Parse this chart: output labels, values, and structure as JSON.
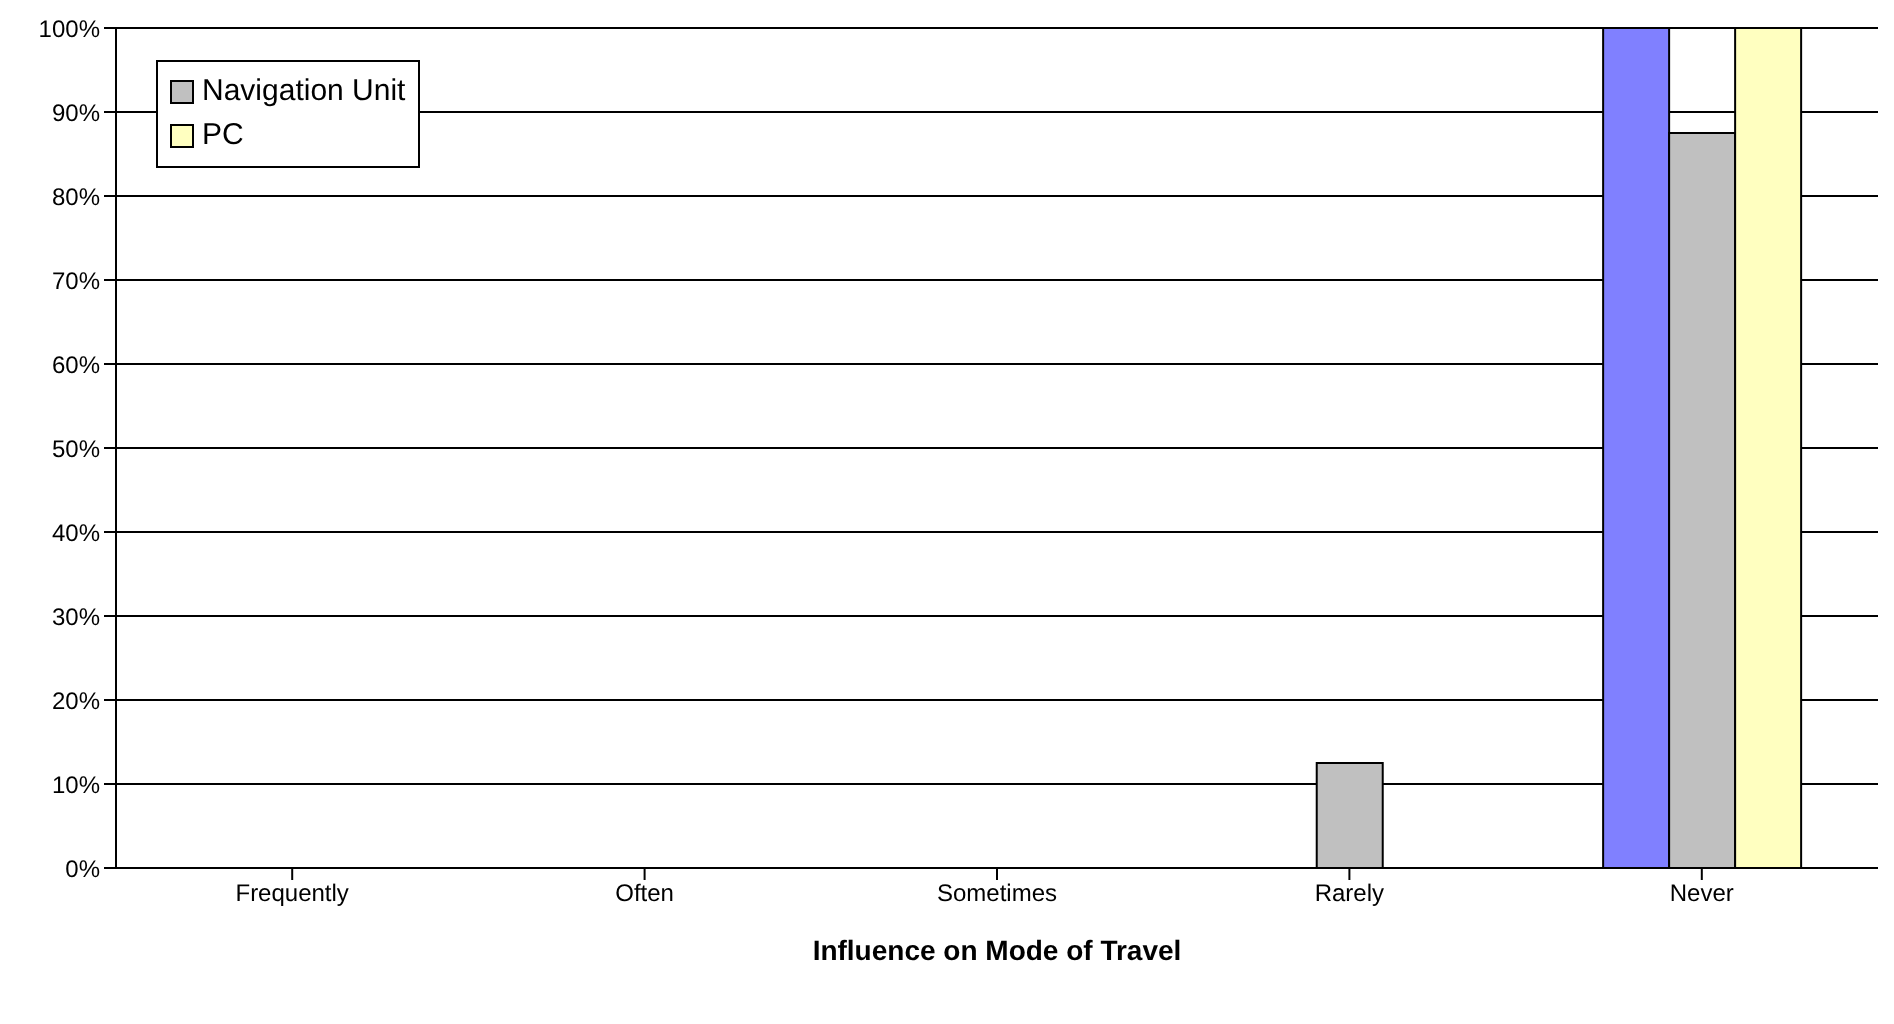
{
  "chart_data": {
    "type": "bar",
    "xlabel": "Influence on Mode of Travel",
    "categories": [
      "Frequently",
      "Often",
      "Sometimes",
      "Rarely",
      "Never"
    ],
    "series": [
      {
        "color": "#8080ff",
        "values": [
          0,
          0,
          0,
          0,
          100
        ]
      },
      {
        "name": "Navigation Unit",
        "color": "#c0c0c0",
        "values": [
          0,
          0,
          0,
          12.5,
          87.5
        ]
      },
      {
        "name": "PC",
        "color": "#ffffc0",
        "values": [
          0,
          0,
          0,
          0,
          100
        ]
      }
    ],
    "ylim": [
      0,
      100
    ],
    "yticks": [
      {
        "value": 0,
        "label": "0%"
      },
      {
        "value": 10,
        "label": "10%"
      },
      {
        "value": 20,
        "label": "20%"
      },
      {
        "value": 30,
        "label": "30%"
      },
      {
        "value": 40,
        "label": "40%"
      },
      {
        "value": 50,
        "label": "50%"
      },
      {
        "value": 60,
        "label": "60%"
      },
      {
        "value": 70,
        "label": "70%"
      },
      {
        "value": 80,
        "label": "80%"
      },
      {
        "value": 90,
        "label": "90%"
      },
      {
        "value": 100,
        "label": "100%"
      }
    ],
    "grid": "y",
    "legend": "top left"
  }
}
